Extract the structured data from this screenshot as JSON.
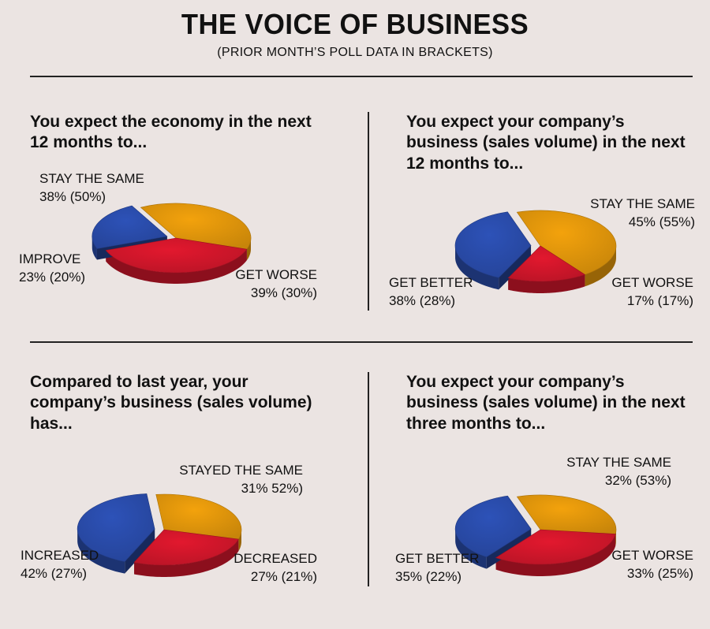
{
  "header": {
    "title": "THE VOICE OF BUSINESS",
    "subtitle": "(PRIOR MONTH’S POLL DATA IN BRACKETS)"
  },
  "colors": {
    "stay": "#f3a20c",
    "worse": "#e2182e",
    "better": "#2d52b8",
    "background": "#ebe4e2"
  },
  "chart_data": [
    {
      "type": "pie",
      "title": "You expect the economy in the next 12 months to...",
      "slices": [
        {
          "key": "stay",
          "label": "STAY THE SAME",
          "value_text": "38% (50%)",
          "value": 38,
          "prior": 50,
          "color": "#f3a20c"
        },
        {
          "key": "worse",
          "label": "GET WORSE",
          "value_text": "39% (30%)",
          "value": 39,
          "prior": 30,
          "color": "#e2182e"
        },
        {
          "key": "better",
          "label": "IMPROVE",
          "value_text": "23% (20%)",
          "value": 23,
          "prior": 20,
          "color": "#2d52b8",
          "exploded": true
        }
      ]
    },
    {
      "type": "pie",
      "title": "You expect your company’s business (sales volume) in the next 12 months to...",
      "slices": [
        {
          "key": "stay",
          "label": "STAY THE SAME",
          "value_text": "45% (55%)",
          "value": 45,
          "prior": 55,
          "color": "#f3a20c"
        },
        {
          "key": "worse",
          "label": "GET WORSE",
          "value_text": "17% (17%)",
          "value": 17,
          "prior": 17,
          "color": "#e2182e"
        },
        {
          "key": "better",
          "label": "GET BETTER",
          "value_text": "38% (28%)",
          "value": 38,
          "prior": 28,
          "color": "#2d52b8",
          "exploded": true
        }
      ]
    },
    {
      "type": "pie",
      "title": "Compared to last year, your company’s business (sales volume) has...",
      "slices": [
        {
          "key": "stay",
          "label": "STAYED THE SAME",
          "value_text": "31% 52%)",
          "value": 31,
          "prior": 52,
          "color": "#f3a20c"
        },
        {
          "key": "worse",
          "label": "DECREASED",
          "value_text": "27% (21%)",
          "value": 27,
          "prior": 21,
          "color": "#e2182e"
        },
        {
          "key": "better",
          "label": "INCREASED",
          "value_text": "42% (27%)",
          "value": 42,
          "prior": 27,
          "color": "#2d52b8",
          "exploded": true
        }
      ]
    },
    {
      "type": "pie",
      "title": "You expect your company’s business (sales volume) in the next three months to...",
      "slices": [
        {
          "key": "stay",
          "label": "STAY THE SAME",
          "value_text": "32% (53%)",
          "value": 32,
          "prior": 53,
          "color": "#f3a20c"
        },
        {
          "key": "worse",
          "label": "GET WORSE",
          "value_text": "33% (25%)",
          "value": 33,
          "prior": 25,
          "color": "#e2182e"
        },
        {
          "key": "better",
          "label": "GET BETTER",
          "value_text": "35% (22%)",
          "value": 35,
          "prior": 22,
          "color": "#2d52b8",
          "exploded": true
        }
      ]
    }
  ]
}
